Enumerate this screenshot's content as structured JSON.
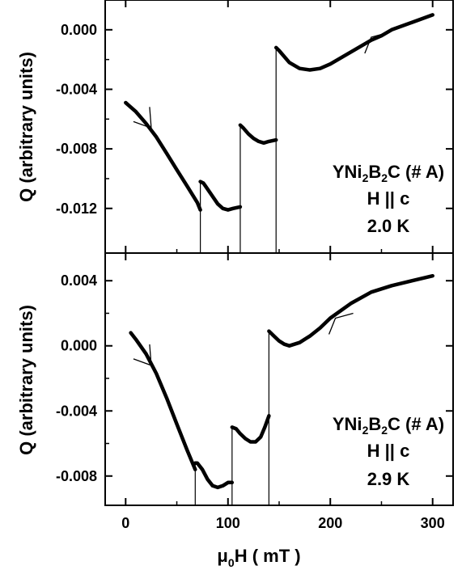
{
  "chart_data": [
    {
      "type": "line",
      "panel": "top",
      "ylabel": "Q (arbitrary units)",
      "xlim": [
        -20,
        320
      ],
      "ylim": [
        -0.015,
        0.002
      ],
      "xticks": [
        0,
        100,
        200,
        300
      ],
      "yticks": [
        0.0,
        -0.004,
        -0.008,
        -0.012
      ],
      "ytick_labels": [
        "0.000",
        "-0.004",
        "-0.008",
        "-0.012"
      ],
      "annotation": {
        "compound_pre": "YNi",
        "sub1": "2",
        "compound_mid": "B",
        "sub2": "2",
        "compound_post": "C (# A)",
        "field": "H || c",
        "temperature": "2.0 K"
      },
      "series": [
        {
          "segment": 1,
          "x": [
            0,
            10,
            20,
            30,
            40,
            50,
            60,
            70,
            73
          ],
          "y": [
            -0.0049,
            -0.0055,
            -0.0063,
            -0.0072,
            -0.0083,
            -0.0094,
            -0.0105,
            -0.0116,
            -0.0121
          ]
        },
        {
          "segment": 2,
          "x": [
            73,
            76,
            80,
            85,
            90,
            95,
            100,
            105,
            112
          ],
          "y": [
            -0.0102,
            -0.0103,
            -0.0107,
            -0.0112,
            -0.0117,
            -0.012,
            -0.0121,
            -0.012,
            -0.0119
          ]
        },
        {
          "segment": 3,
          "x": [
            112,
            115,
            120,
            125,
            130,
            135,
            140,
            147
          ],
          "y": [
            -0.0064,
            -0.0066,
            -0.007,
            -0.0073,
            -0.0075,
            -0.0076,
            -0.0075,
            -0.0074
          ]
        },
        {
          "segment": 4,
          "x": [
            147,
            150,
            160,
            170,
            180,
            190,
            200,
            220,
            240,
            250,
            260,
            280,
            300
          ],
          "y": [
            -0.0012,
            -0.0014,
            -0.0022,
            -0.0026,
            -0.0027,
            -0.0026,
            -0.0023,
            -0.0015,
            -0.0007,
            -0.0004,
            0.0,
            0.0005,
            0.001
          ]
        }
      ],
      "jumps": [
        {
          "x": 73,
          "y_top": -0.0102,
          "y_bottom": -0.015
        },
        {
          "x": 112,
          "y_top": -0.0064,
          "y_bottom": -0.015
        },
        {
          "x": 147,
          "y_top": -0.0012,
          "y_bottom": -0.015
        }
      ],
      "arrows": [
        {
          "x": 25,
          "y": -0.0066,
          "direction": "right"
        },
        {
          "x": 240,
          "y": -0.0005,
          "direction": "left"
        }
      ]
    },
    {
      "type": "line",
      "panel": "bottom",
      "xlabel_pre": "μ",
      "xlabel_sub": "0",
      "xlabel_post": "H ( mT )",
      "ylabel": "Q (arbitrary units)",
      "xlim": [
        -20,
        320
      ],
      "ylim": [
        -0.0098,
        0.0057
      ],
      "xticks": [
        0,
        100,
        200,
        300
      ],
      "xtick_labels": [
        "0",
        "100",
        "200",
        "300"
      ],
      "yticks": [
        0.004,
        0.0,
        -0.004,
        -0.008
      ],
      "ytick_labels": [
        "0.004",
        "0.000",
        "-0.004",
        "-0.008"
      ],
      "annotation": {
        "compound_pre": "YNi",
        "sub1": "2",
        "compound_mid": "B",
        "sub2": "2",
        "compound_post": "C (# A)",
        "field": "H || c",
        "temperature": "2.9 K"
      },
      "series": [
        {
          "segment": 1,
          "x": [
            5,
            10,
            20,
            30,
            40,
            50,
            60,
            68
          ],
          "y": [
            0.0008,
            0.0004,
            -0.0005,
            -0.0017,
            -0.0032,
            -0.0048,
            -0.0064,
            -0.0076
          ]
        },
        {
          "segment": 2,
          "x": [
            68,
            70,
            75,
            80,
            85,
            90,
            95,
            100,
            104
          ],
          "y": [
            -0.0072,
            -0.0072,
            -0.0076,
            -0.0082,
            -0.0086,
            -0.0087,
            -0.0086,
            -0.0084,
            -0.0084
          ]
        },
        {
          "segment": 3,
          "x": [
            104,
            108,
            112,
            117,
            122,
            127,
            132,
            136,
            140
          ],
          "y": [
            -0.005,
            -0.0051,
            -0.0054,
            -0.0057,
            -0.0059,
            -0.0059,
            -0.0056,
            -0.005,
            -0.0043
          ]
        },
        {
          "segment": 4,
          "x": [
            140,
            145,
            150,
            155,
            160,
            170,
            180,
            190,
            200,
            220,
            240,
            260,
            280,
            300
          ],
          "y": [
            0.0009,
            0.0006,
            0.0003,
            0.0001,
            0.0,
            0.0002,
            0.0006,
            0.0011,
            0.0017,
            0.0026,
            0.0033,
            0.0037,
            0.004,
            0.0043
          ]
        }
      ],
      "jumps": [
        {
          "x": 68,
          "y_top": -0.0072,
          "y_bottom": -0.0098
        },
        {
          "x": 104,
          "y_top": -0.005,
          "y_bottom": -0.0098
        },
        {
          "x": 140,
          "y_top": 0.0009,
          "y_bottom": -0.0098
        }
      ],
      "arrows": [
        {
          "x": 25,
          "y": -0.0012,
          "direction": "right"
        },
        {
          "x": 205,
          "y": 0.0017,
          "direction": "left"
        }
      ]
    }
  ]
}
